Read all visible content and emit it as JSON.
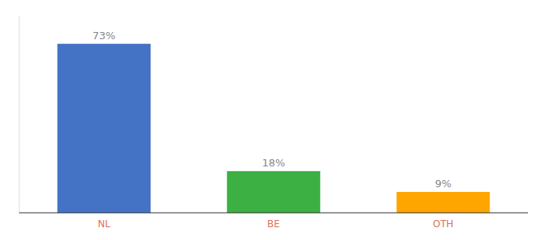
{
  "chart_data": {
    "type": "bar",
    "categories": [
      "NL",
      "BE",
      "OTH"
    ],
    "values": [
      73,
      18,
      9
    ],
    "value_labels": [
      "73%",
      "18%",
      "9%"
    ],
    "colors": [
      "#4472C4",
      "#3CB043",
      "#FFA500"
    ],
    "ylim": [
      0,
      85
    ],
    "data_labels": true,
    "tick_labels": "x",
    "grid": false
  }
}
